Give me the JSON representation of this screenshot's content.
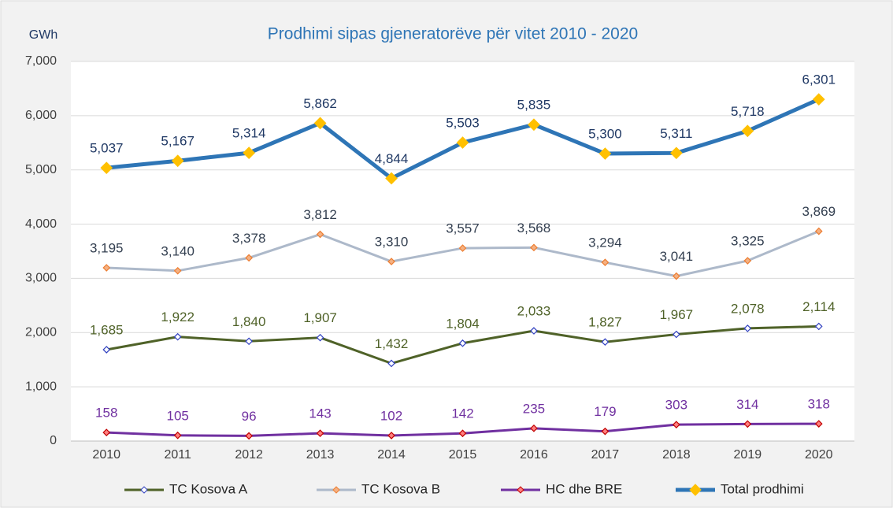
{
  "chart_data": {
    "type": "line",
    "title": "Prodhimi sipas gjeneratorëve për vitet 2010 - 2020",
    "y_label": "GWh",
    "categories": [
      "2010",
      "2011",
      "2012",
      "2013",
      "2014",
      "2015",
      "2016",
      "2017",
      "2018",
      "2019",
      "2020"
    ],
    "ylim": [
      0,
      7000
    ],
    "yticks": [
      0,
      {
        "value": 1000,
        "label": "1,000"
      },
      {
        "value": 2000,
        "label": "2,000"
      },
      {
        "value": 3000,
        "label": "3,000"
      },
      {
        "value": 4000,
        "label": "4,000"
      },
      {
        "value": 5000,
        "label": "5,000"
      },
      {
        "value": 6000,
        "label": "6,000"
      },
      {
        "value": 7000,
        "label": "7,000"
      }
    ],
    "grid": true,
    "legend": "bottom",
    "series": [
      {
        "name": "TC Kosova A",
        "color": "#4f6228",
        "marker_color": "#ffffff",
        "marker_stroke": "#3040c0",
        "label_color": "#4f6228",
        "values": [
          1685,
          1922,
          1840,
          1907,
          1432,
          1804,
          2033,
          1827,
          1967,
          2078,
          2114
        ],
        "value_labels": [
          "1,685",
          "1,922",
          "1,840",
          "1,907",
          "1,432",
          "1,804",
          "2,033",
          "1,827",
          "1,967",
          "2,078",
          "2,114"
        ]
      },
      {
        "name": "TC Kosova B",
        "color": "#adb9ca",
        "marker_color": "#f4b183",
        "marker_stroke": "#ed7d31",
        "label_color": "#333f50",
        "values": [
          3195,
          3140,
          3378,
          3812,
          3310,
          3557,
          3568,
          3294,
          3041,
          3325,
          3869
        ],
        "value_labels": [
          "3,195",
          "3,140",
          "3,378",
          "3,812",
          "3,310",
          "3,557",
          "3,568",
          "3,294",
          "3,041",
          "3,325",
          "3,869"
        ]
      },
      {
        "name": "HC dhe BRE",
        "color": "#7030a0",
        "marker_color": "#ff8080",
        "marker_stroke": "#c00000",
        "label_color": "#7030a0",
        "values": [
          158,
          105,
          96,
          143,
          102,
          142,
          235,
          179,
          303,
          314,
          318
        ]
      },
      {
        "name": "Total prodhimi",
        "color": "#2e75b6",
        "marker_color": "#ffc000",
        "marker_stroke": "#ffc000",
        "label_color": "#1f3864",
        "values": [
          5037,
          5167,
          5314,
          5862,
          4844,
          5503,
          5835,
          5300,
          5311,
          5718,
          6301
        ],
        "value_labels": [
          "5,037",
          "5,167",
          "5,314",
          "5,862",
          "4,844",
          "5,503",
          "5,835",
          "5,300",
          "5,311",
          "5,718",
          "6,301"
        ]
      }
    ]
  }
}
